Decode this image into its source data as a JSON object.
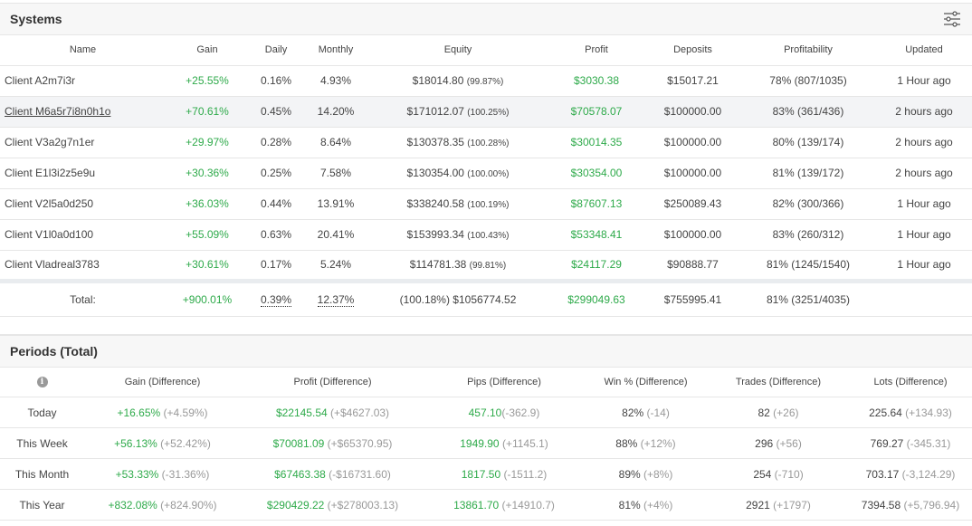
{
  "systems": {
    "title": "Systems",
    "settings_icon": "sliders-icon",
    "columns": [
      "Name",
      "Gain",
      "Daily",
      "Monthly",
      "Equity",
      "Profit",
      "Deposits",
      "Profitability",
      "Updated"
    ],
    "rows": [
      {
        "name": "Client A2m7i3r",
        "gain": "+25.55%",
        "daily": "0.16%",
        "monthly": "4.93%",
        "equity": "$18014.80",
        "equity_pct": "(99.87%)",
        "profit": "$3030.38",
        "deposits": "$15017.21",
        "profitability": "78% (807/1035)",
        "updated": "1 Hour ago"
      },
      {
        "name": "Client M6a5r7i8n0h1o",
        "gain": "+70.61%",
        "daily": "0.45%",
        "monthly": "14.20%",
        "equity": "$171012.07",
        "equity_pct": "(100.25%)",
        "profit": "$70578.07",
        "deposits": "$100000.00",
        "profitability": "83% (361/436)",
        "updated": "2 hours ago"
      },
      {
        "name": "Client V3a2g7n1er",
        "gain": "+29.97%",
        "daily": "0.28%",
        "monthly": "8.64%",
        "equity": "$130378.35",
        "equity_pct": "(100.28%)",
        "profit": "$30014.35",
        "deposits": "$100000.00",
        "profitability": "80% (139/174)",
        "updated": "2 hours ago"
      },
      {
        "name": "Client E1l3i2z5e9u",
        "gain": "+30.36%",
        "daily": "0.25%",
        "monthly": "7.58%",
        "equity": "$130354.00",
        "equity_pct": "(100.00%)",
        "profit": "$30354.00",
        "deposits": "$100000.00",
        "profitability": "81% (139/172)",
        "updated": "2 hours ago"
      },
      {
        "name": "Client V2l5a0d250",
        "gain": "+36.03%",
        "daily": "0.44%",
        "monthly": "13.91%",
        "equity": "$338240.58",
        "equity_pct": "(100.19%)",
        "profit": "$87607.13",
        "deposits": "$250089.43",
        "profitability": "82% (300/366)",
        "updated": "1 Hour ago"
      },
      {
        "name": "Client V1l0a0d100",
        "gain": "+55.09%",
        "daily": "0.63%",
        "monthly": "20.41%",
        "equity": "$153993.34",
        "equity_pct": "(100.43%)",
        "profit": "$53348.41",
        "deposits": "$100000.00",
        "profitability": "83% (260/312)",
        "updated": "1 Hour ago"
      },
      {
        "name": "Client Vladreal3783",
        "gain": "+30.61%",
        "daily": "0.17%",
        "monthly": "5.24%",
        "equity": "$114781.38",
        "equity_pct": "(99.81%)",
        "profit": "$24117.29",
        "deposits": "$90888.77",
        "profitability": "81% (1245/1540)",
        "updated": "1 Hour ago"
      }
    ],
    "total": {
      "label": "Total:",
      "gain": "+900.01%",
      "daily": "0.39%",
      "monthly": "12.37%",
      "equity": "(100.18%) $1056774.52",
      "profit": "$299049.63",
      "deposits": "$755995.41",
      "profitability": "81% (3251/4035)"
    }
  },
  "periods": {
    "title": "Periods (Total)",
    "info_icon": "info-icon",
    "columns": [
      "Gain (Difference)",
      "Profit (Difference)",
      "Pips (Difference)",
      "Win % (Difference)",
      "Trades (Difference)",
      "Lots (Difference)"
    ],
    "rows": [
      {
        "period": "Today",
        "gain": "+16.65%",
        "gain_diff": " (+4.59%)",
        "profit": "$22145.54",
        "profit_diff": " (+$4627.03)",
        "pips": "457.10",
        "pips_diff": "(-362.9)",
        "win": "82%",
        "win_diff": " (-14)",
        "trades": "82",
        "trades_diff": " (+26)",
        "lots": "225.64",
        "lots_diff": " (+134.93)"
      },
      {
        "period": "This Week",
        "gain": "+56.13%",
        "gain_diff": " (+52.42%)",
        "profit": "$70081.09",
        "profit_diff": " (+$65370.95)",
        "pips": "1949.90",
        "pips_diff": " (+1145.1)",
        "win": "88%",
        "win_diff": " (+12%)",
        "trades": "296",
        "trades_diff": " (+56)",
        "lots": "769.27",
        "lots_diff": " (-345.31)"
      },
      {
        "period": "This Month",
        "gain": "+53.33%",
        "gain_diff": " (-31.36%)",
        "profit": "$67463.38",
        "profit_diff": " (-$16731.60)",
        "pips": "1817.50",
        "pips_diff": " (-1511.2)",
        "win": "89%",
        "win_diff": " (+8%)",
        "trades": "254",
        "trades_diff": " (-710)",
        "lots": "703.17",
        "lots_diff": " (-3,124.29)"
      },
      {
        "period": "This Year",
        "gain": "+832.08%",
        "gain_diff": " (+824.90%)",
        "profit": "$290429.22",
        "profit_diff": " (+$278003.13)",
        "pips": "13861.70",
        "pips_diff": " (+14910.7)",
        "win": "81%",
        "win_diff": " (+4%)",
        "trades": "2921",
        "trades_diff": " (+1797)",
        "lots": "7394.58",
        "lots_diff": " (+5,796.94)"
      }
    ]
  },
  "colors": {
    "positive": "#2eaa4a",
    "muted": "#999999",
    "header_bg": "#f7f7f7",
    "highlight_row": "#f3f4f6"
  }
}
